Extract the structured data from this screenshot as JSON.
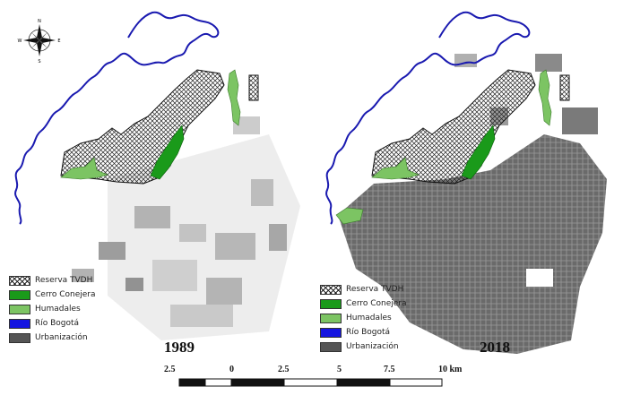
{
  "maps": [
    {
      "year": "1989"
    },
    {
      "year": "2018"
    }
  ],
  "legend": [
    {
      "label": "Reserva TVDH",
      "color": "#ffffff",
      "pattern": "crosshatch"
    },
    {
      "label": "Cerro Conejera",
      "color": "#1a9a1a"
    },
    {
      "label": "Humadales",
      "color": "#7cc463"
    },
    {
      "label": "Río Bogotá",
      "color": "#1515e0"
    },
    {
      "label": "Urbanización",
      "color": "#555555"
    }
  ],
  "compass": {
    "labels": [
      "N",
      "E",
      "S",
      "W"
    ],
    "icon": "compass-rose-icon"
  },
  "scale_bar": {
    "labels": [
      "2.5",
      "0",
      "2.5",
      "5",
      "7.5",
      "10 km"
    ]
  }
}
